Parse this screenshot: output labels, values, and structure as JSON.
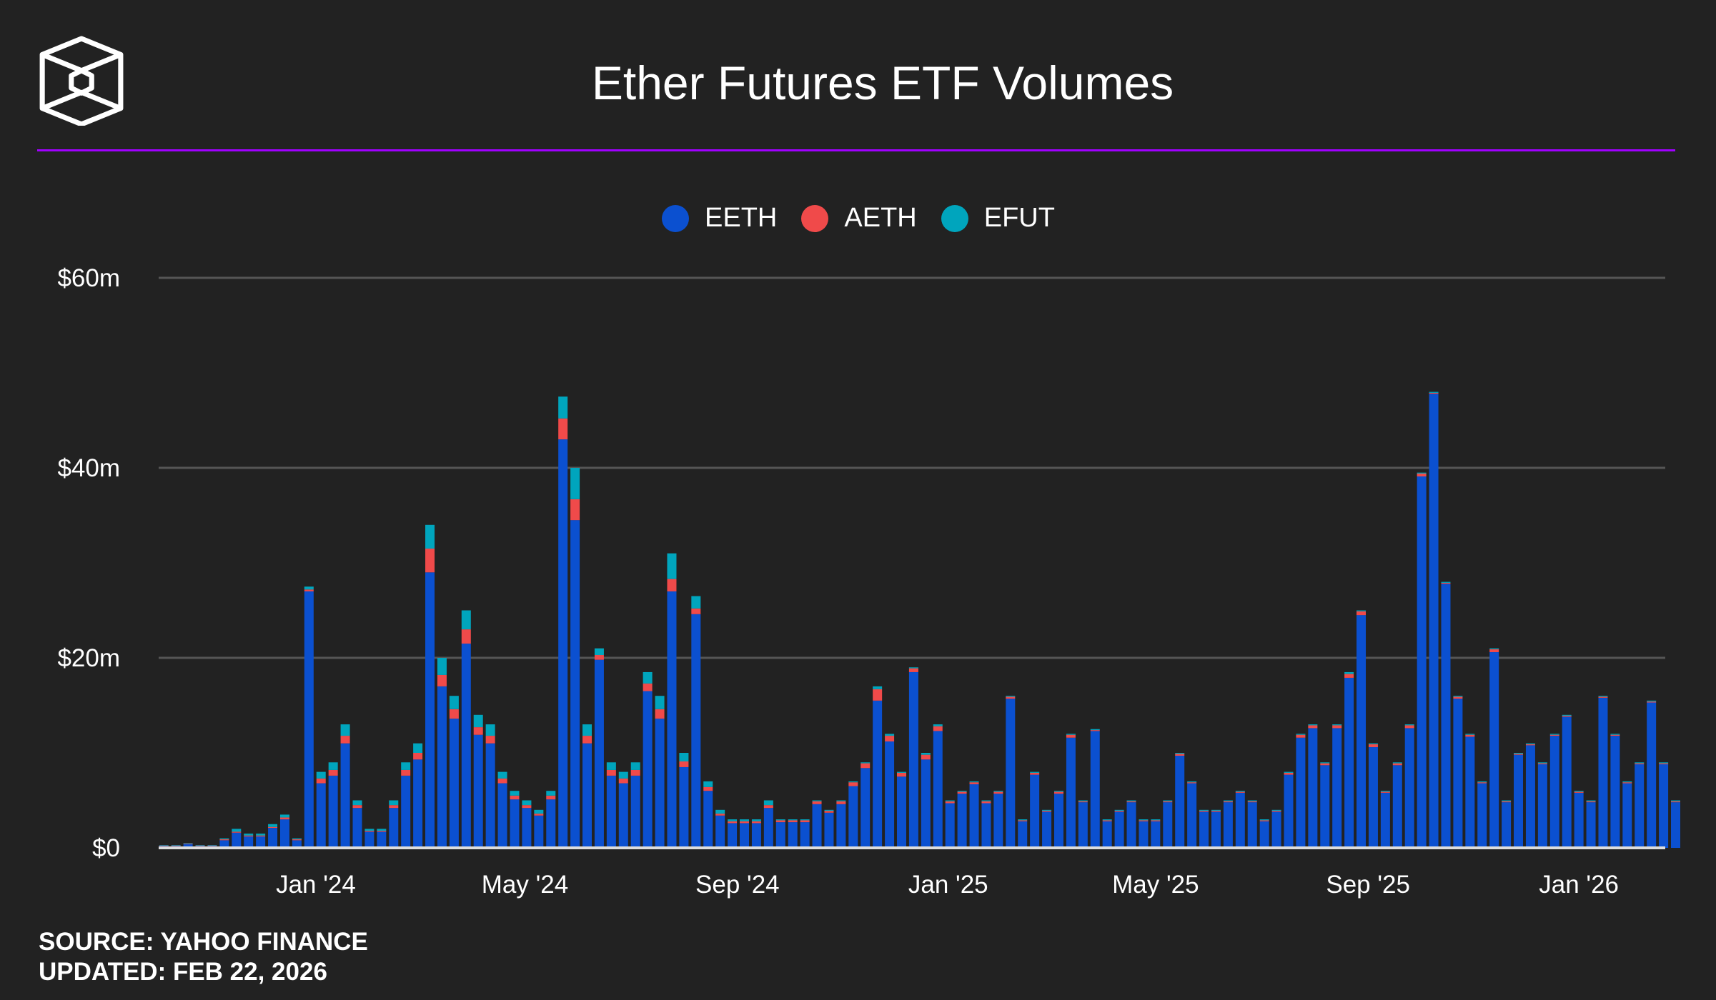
{
  "title": "Ether Futures ETF Volumes",
  "footer": {
    "source": "SOURCE: YAHOO FINANCE",
    "updated": "UPDATED: FEB 22, 2026"
  },
  "colors": {
    "background": "#222222",
    "accent_rule": "#a000ff",
    "EETH": "#0b50d0",
    "AETH": "#f04a4a",
    "EFUT": "#00a5bd"
  },
  "chart_data": {
    "type": "bar",
    "stacked": true,
    "title": "Ether Futures ETF Volumes",
    "xlabel": "",
    "ylabel": "",
    "unit": "$m",
    "x_start": "2023-10-02",
    "x_end": "2026-02-20",
    "interval_days": 7,
    "ylim": [
      0,
      60
    ],
    "yticks": [
      {
        "value": 0,
        "label": "$0"
      },
      {
        "value": 20,
        "label": "$20m"
      },
      {
        "value": 40,
        "label": "$40m"
      },
      {
        "value": 60,
        "label": "$60m"
      }
    ],
    "xticks": [
      {
        "date": "2024-01-01",
        "label": "Jan '24"
      },
      {
        "date": "2024-05-01",
        "label": "May '24"
      },
      {
        "date": "2024-09-01",
        "label": "Sep '24"
      },
      {
        "date": "2025-01-01",
        "label": "Jan '25"
      },
      {
        "date": "2025-05-01",
        "label": "May '25"
      },
      {
        "date": "2025-09-01",
        "label": "Sep '25"
      },
      {
        "date": "2026-01-01",
        "label": "Jan '26"
      }
    ],
    "grid": true,
    "legend_position": "top-center",
    "series": [
      {
        "name": "EETH",
        "values": [
          0.2,
          0.2,
          0.4,
          0.2,
          0.2,
          0.8,
          1.6,
          1.2,
          1.2,
          2.1,
          3.0,
          0.8,
          27.0,
          6.8,
          7.6,
          11.0,
          4.2,
          1.7,
          1.7,
          4.2,
          7.6,
          9.3,
          29,
          17,
          13.6,
          21.5,
          11.9,
          11.0,
          6.8,
          5.1,
          4.2,
          3.4,
          5.1,
          43,
          34.5,
          11,
          19.8,
          7.6,
          6.8,
          7.6,
          16.5,
          13.6,
          27,
          8.5,
          24.6,
          6.0,
          3.4,
          2.6,
          2.6,
          2.6,
          4.2,
          2.7,
          2.7,
          2.7,
          4.6,
          3.7,
          4.6,
          6.5,
          8.4,
          15.5,
          11.2,
          7.5,
          18.5,
          9.3,
          12.3,
          4.7,
          5.7,
          6.7,
          4.7,
          5.7,
          15.7,
          2.8,
          7.7,
          3.8,
          5.7,
          11.6,
          4.8,
          12.3,
          2.8,
          3.8,
          4.8,
          2.8,
          2.8,
          4.8,
          9.7,
          6.8,
          3.8,
          3.8,
          4.8,
          5.8,
          4.8,
          2.8,
          3.8,
          7.7,
          11.6,
          12.6,
          8.7,
          12.6,
          17.9,
          24.5,
          10.6,
          5.8,
          8.7,
          12.6,
          39.1,
          47.8,
          27.8,
          15.7,
          11.7,
          6.8,
          20.6,
          4.8,
          9.8,
          10.8,
          8.8,
          11.8,
          13.8,
          5.8,
          4.8,
          15.8,
          11.8,
          6.8,
          8.8,
          15.3,
          8.8,
          4.8
        ]
      },
      {
        "name": "AETH",
        "values": [
          0.05,
          0.05,
          0.05,
          0.05,
          0.05,
          0.1,
          0.1,
          0.1,
          0.1,
          0.1,
          0.2,
          0.1,
          0.2,
          0.5,
          0.6,
          0.8,
          0.3,
          0.1,
          0.1,
          0.3,
          0.6,
          0.7,
          2.5,
          1.2,
          1.0,
          1.5,
          0.8,
          0.8,
          0.5,
          0.4,
          0.3,
          0.2,
          0.4,
          2.2,
          2.2,
          0.8,
          0.5,
          0.6,
          0.5,
          0.6,
          0.8,
          1.0,
          1.3,
          0.6,
          0.6,
          0.4,
          0.2,
          0.2,
          0.2,
          0.2,
          0.3,
          0.2,
          0.2,
          0.2,
          0.3,
          0.2,
          0.3,
          0.4,
          0.5,
          1.2,
          0.6,
          0.4,
          0.4,
          0.5,
          0.5,
          0.2,
          0.2,
          0.2,
          0.2,
          0.2,
          0.2,
          0.1,
          0.2,
          0.1,
          0.2,
          0.3,
          0.1,
          0.1,
          0.1,
          0.1,
          0.1,
          0.1,
          0.1,
          0.1,
          0.2,
          0.1,
          0.1,
          0.1,
          0.1,
          0.1,
          0.1,
          0.1,
          0.1,
          0.2,
          0.3,
          0.3,
          0.2,
          0.3,
          0.4,
          0.4,
          0.3,
          0.1,
          0.2,
          0.3,
          0.3,
          0.1,
          0.1,
          0.2,
          0.2,
          0.1,
          0.3,
          0.1,
          0.1,
          0.1,
          0.1,
          0.1,
          0.1,
          0.1,
          0.1,
          0.1,
          0.1,
          0.1,
          0.1,
          0.1,
          0.1,
          0.1
        ]
      },
      {
        "name": "EFUT",
        "values": [
          0.05,
          0.05,
          0.05,
          0.05,
          0.05,
          0.1,
          0.3,
          0.2,
          0.2,
          0.3,
          0.3,
          0.1,
          0.3,
          0.7,
          0.8,
          1.2,
          0.5,
          0.2,
          0.2,
          0.5,
          0.8,
          1.0,
          2.5,
          1.8,
          1.4,
          2.0,
          1.3,
          1.2,
          0.7,
          0.5,
          0.5,
          0.4,
          0.5,
          2.3,
          3.3,
          1.2,
          0.7,
          0.8,
          0.7,
          0.8,
          1.2,
          1.4,
          2.7,
          0.9,
          1.3,
          0.6,
          0.4,
          0.2,
          0.2,
          0.2,
          0.5,
          0.1,
          0.1,
          0.1,
          0.1,
          0.1,
          0.1,
          0.1,
          0.1,
          0.3,
          0.2,
          0.1,
          0.1,
          0.2,
          0.2,
          0.1,
          0.1,
          0.1,
          0.1,
          0.1,
          0.1,
          0.1,
          0.1,
          0.1,
          0.1,
          0.1,
          0.1,
          0.1,
          0.1,
          0.1,
          0.1,
          0.1,
          0.1,
          0.1,
          0.1,
          0.1,
          0.1,
          0.1,
          0.1,
          0.1,
          0.1,
          0.1,
          0.1,
          0.1,
          0.1,
          0.1,
          0.1,
          0.1,
          0.2,
          0.1,
          0.1,
          0.1,
          0.1,
          0.1,
          0.1,
          0.1,
          0.1,
          0.1,
          0.1,
          0.1,
          0.1,
          0.1,
          0.1,
          0.1,
          0.1,
          0.1,
          0.1,
          0.1,
          0.1,
          0.1,
          0.1,
          0.1,
          0.1,
          0.1,
          0.1,
          0.1
        ]
      }
    ]
  }
}
